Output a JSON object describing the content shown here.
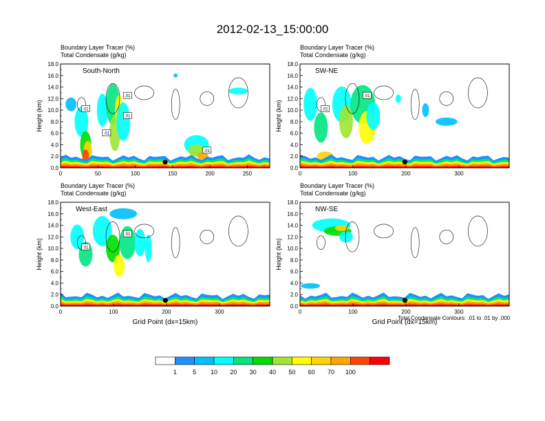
{
  "title": "2012-02-13_15:00:00",
  "colorbar": {
    "labels": [
      "1",
      "5",
      "10",
      "20",
      "30",
      "40",
      "50",
      "60",
      "70",
      "100"
    ],
    "colors": [
      "#ffffff",
      "#1e90ff",
      "#00bfff",
      "#00ffff",
      "#00e580",
      "#00dd00",
      "#a0e632",
      "#ffff00",
      "#ffd400",
      "#ffa500",
      "#ff4500",
      "#ff0000"
    ]
  },
  "footnote": "Total Condensate Contours: .01 to .01 by .000",
  "chart_data": [
    {
      "type": "heatmap",
      "label": "South-North",
      "title_lines": [
        "Boundary Layer Tracer    (%)",
        "Total Condensate    (g/kg)"
      ],
      "ylabel": "Height (km)",
      "xlabel": "",
      "xlim": [
        0,
        280
      ],
      "ylim": [
        0,
        18
      ],
      "xticks": [
        "0",
        "50",
        "100",
        "150",
        "200",
        "250"
      ],
      "yticks": [
        "0.0",
        "2.0",
        "4.0",
        "6.0",
        "8.0",
        "10.0",
        "12.0",
        "14.0",
        "16.0",
        "18.0"
      ],
      "contour_labels": [
        ".01",
        ".01",
        ".01",
        ".01",
        ".01"
      ],
      "marker": {
        "x": 140,
        "y": 1.0
      }
    },
    {
      "type": "heatmap",
      "label": "SW-NE",
      "title_lines": [
        "Boundary Layer Tracer    (%)",
        "Total Condensate    (g/kg)"
      ],
      "ylabel": "Height (km)",
      "xlabel": "",
      "xlim": [
        0,
        395
      ],
      "ylim": [
        0,
        18
      ],
      "xticks": [
        "0",
        "100",
        "200",
        "300"
      ],
      "yticks": [
        "0.0",
        "2.0",
        "4.0",
        "6.0",
        "8.0",
        "10.0",
        "12.0",
        "14.0",
        "16.0",
        "18.0"
      ],
      "contour_labels": [
        ".01",
        ".01"
      ],
      "marker": {
        "x": 198,
        "y": 1.0
      }
    },
    {
      "type": "heatmap",
      "label": "West-East",
      "title_lines": [
        "Boundary Layer Tracer    (%)",
        "Total Condensate    (g/kg)"
      ],
      "ylabel": "Height (km)",
      "xlabel": "Grid Point (dx=15km)",
      "xlim": [
        0,
        395
      ],
      "ylim": [
        0,
        18
      ],
      "xticks": [
        "0",
        "100",
        "200",
        "300"
      ],
      "yticks": [
        "0.0",
        "2.0",
        "4.0",
        "6.0",
        "8.0",
        "10.0",
        "12.0",
        "14.0",
        "16.0",
        "18.0"
      ],
      "contour_labels": [
        ".01",
        ".01"
      ],
      "marker": {
        "x": 198,
        "y": 1.0
      }
    },
    {
      "type": "heatmap",
      "label": "NW-SE",
      "title_lines": [
        "Boundary Layer Tracer    (%)",
        "Total Condensate    (g/kg)"
      ],
      "ylabel": "Height (km)",
      "xlabel": "Grid Point (dx=15km)",
      "xlim": [
        0,
        395
      ],
      "ylim": [
        0,
        18
      ],
      "xticks": [
        "0",
        "100",
        "200",
        "300"
      ],
      "yticks": [
        "0.0",
        "2.0",
        "4.0",
        "6.0",
        "8.0",
        "10.0",
        "12.0",
        "14.0",
        "16.0",
        "18.0"
      ],
      "contour_labels": [],
      "marker": {
        "x": 198,
        "y": 1.0
      }
    }
  ]
}
